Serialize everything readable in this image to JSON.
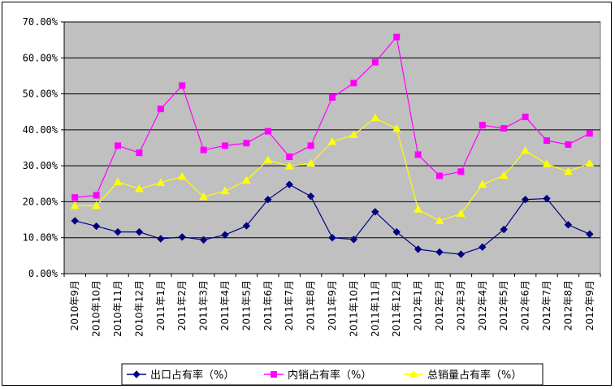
{
  "chart_data": {
    "type": "line",
    "title": "",
    "xlabel": "",
    "ylabel": "",
    "ylim": [
      0,
      70
    ],
    "y_ticks": [
      "0.00%",
      "10.00%",
      "20.00%",
      "30.00%",
      "40.00%",
      "50.00%",
      "60.00%",
      "70.00%"
    ],
    "grid": true,
    "legend_position": "bottom",
    "plot_background": "#c0c0c0",
    "categories": [
      "2010年9月",
      "2010年10月",
      "2010年11月",
      "2010年12月",
      "2011年1月",
      "2011年2月",
      "2011年3月",
      "2011年4月",
      "2011年5月",
      "2011年6月",
      "2011年7月",
      "2011年8月",
      "2011年9月",
      "2011年10月",
      "2011年11月",
      "2011年12月",
      "2012年1月",
      "2012年2月",
      "2012年3月",
      "2012年4月",
      "2012年5月",
      "2012年6月",
      "2012年7月",
      "2012年8月",
      "2012年9月"
    ],
    "series": [
      {
        "name": "出口占有率（%）",
        "color": "#000080",
        "marker": "diamond",
        "values": [
          14.7,
          13.2,
          11.6,
          11.6,
          9.7,
          10.2,
          9.4,
          10.8,
          13.3,
          20.6,
          24.8,
          21.5,
          10.0,
          9.5,
          17.2,
          11.6,
          6.8,
          6.0,
          5.4,
          7.4,
          12.3,
          20.6,
          20.9,
          13.6,
          11.0
        ]
      },
      {
        "name": "内销占有率（%）",
        "color": "#ff00ff",
        "marker": "square",
        "values": [
          21.2,
          21.8,
          35.6,
          33.6,
          45.8,
          52.3,
          34.4,
          35.6,
          36.3,
          39.6,
          32.5,
          35.6,
          49.0,
          53.0,
          58.8,
          65.8,
          33.1,
          27.2,
          28.4,
          41.3,
          40.4,
          43.6,
          37.0,
          35.9,
          39.0
        ]
      },
      {
        "name": "总销量占有率（%）",
        "color": "#ffff00",
        "marker": "triangle",
        "values": [
          18.9,
          18.9,
          25.5,
          23.6,
          25.3,
          27.0,
          21.4,
          23.0,
          25.9,
          31.6,
          29.9,
          30.7,
          36.7,
          38.6,
          43.3,
          40.3,
          17.9,
          14.7,
          16.7,
          24.8,
          27.3,
          34.2,
          30.5,
          28.4,
          30.7
        ]
      }
    ]
  }
}
